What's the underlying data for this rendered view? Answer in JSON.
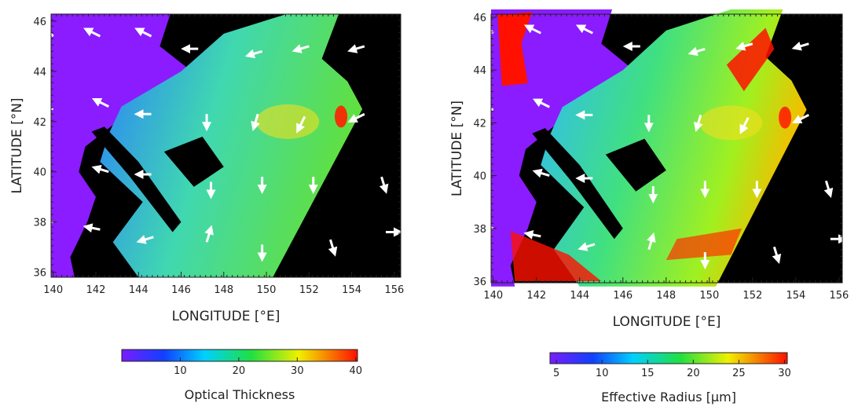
{
  "chart_data": [
    {
      "type": "map",
      "xlabel": "LONGITUDE [°E]",
      "ylabel": "LATITUDE [°N]",
      "xlim": [
        139.9,
        156.3
      ],
      "ylim": [
        35.8,
        46.28
      ],
      "xticks": [
        140,
        142,
        144,
        146,
        148,
        150,
        152,
        154,
        156
      ],
      "yticks": [
        36,
        38,
        40,
        42,
        44,
        46
      ],
      "colorbar": {
        "label": "Optical Thickness",
        "lim": [
          0,
          40.3
        ],
        "ticks": [
          10,
          20,
          30,
          40
        ]
      }
    },
    {
      "type": "map",
      "xlabel": "LONGITUDE [°E]",
      "ylabel": "LATITUDE [°N]",
      "xlim": [
        139.9,
        156.15
      ],
      "ylim": [
        35.94,
        46.12
      ],
      "xticks": [
        140,
        142,
        144,
        146,
        148,
        150,
        152,
        154,
        156
      ],
      "yticks": [
        36,
        38,
        40,
        42,
        44,
        46
      ],
      "colorbar": {
        "label": "Effective Radius [μm]",
        "lim": [
          4.3,
          30.3
        ],
        "ticks": [
          5,
          10,
          15,
          20,
          25,
          30
        ]
      }
    }
  ]
}
